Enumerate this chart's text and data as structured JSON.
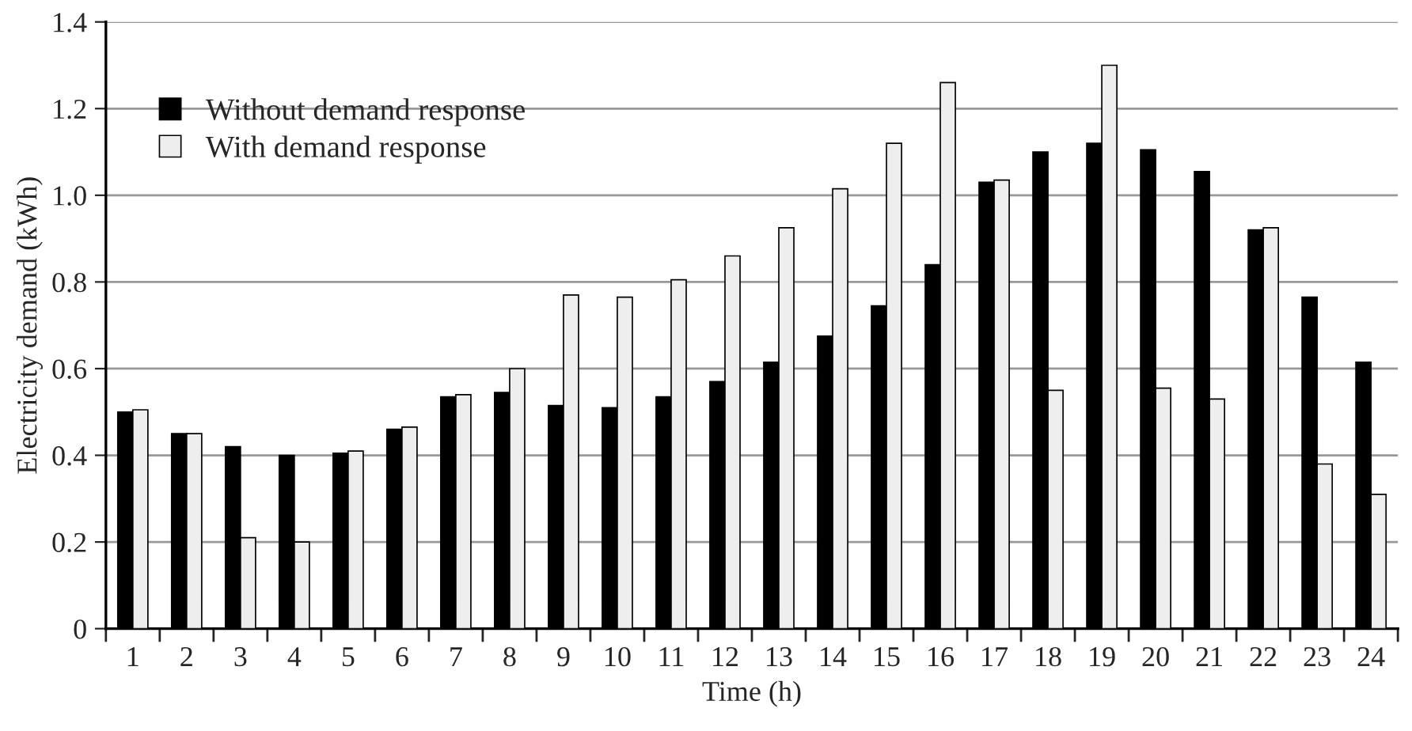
{
  "chart_data": {
    "type": "bar",
    "xlabel": "Time (h)",
    "ylabel": "Electricity demand (kWh)",
    "categories": [
      "1",
      "2",
      "3",
      "4",
      "5",
      "6",
      "7",
      "8",
      "9",
      "10",
      "11",
      "12",
      "13",
      "14",
      "15",
      "16",
      "17",
      "18",
      "19",
      "20",
      "21",
      "22",
      "23",
      "24"
    ],
    "series": [
      {
        "name": "Without demand response",
        "color": "#000000",
        "values": [
          0.5,
          0.45,
          0.42,
          0.4,
          0.405,
          0.46,
          0.535,
          0.545,
          0.515,
          0.51,
          0.535,
          0.57,
          0.615,
          0.675,
          0.745,
          0.84,
          1.03,
          1.1,
          1.12,
          1.105,
          1.055,
          0.92,
          0.765,
          0.615
        ]
      },
      {
        "name": "With demand response",
        "color": "#eeeeee",
        "values": [
          0.505,
          0.45,
          0.21,
          0.2,
          0.41,
          0.465,
          0.54,
          0.6,
          0.77,
          0.765,
          0.805,
          0.86,
          0.925,
          1.015,
          1.12,
          1.26,
          1.035,
          0.55,
          1.3,
          0.555,
          0.53,
          0.925,
          0.38,
          0.31
        ]
      }
    ],
    "ylim": [
      0,
      1.4
    ],
    "yticks": [
      {
        "value": 0,
        "label": "0"
      },
      0.2,
      0.4,
      0.6,
      0.8,
      {
        "value": 1.0,
        "label": "1.0"
      },
      1.2,
      1.4
    ],
    "grid": "y",
    "legend": "top left"
  }
}
